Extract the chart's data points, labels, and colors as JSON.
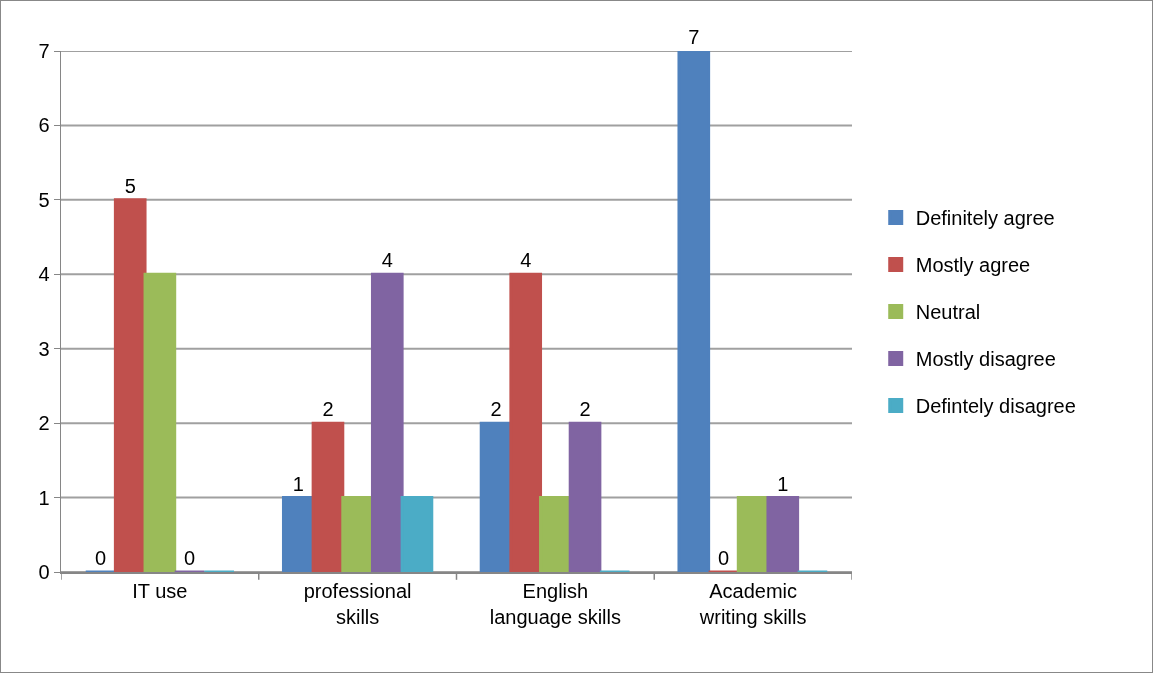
{
  "chart_data": {
    "type": "bar",
    "categories": [
      "IT use",
      "professional skills",
      "English language skills",
      "Academic writing skills"
    ],
    "series": [
      {
        "name": "Definitely agree",
        "color": "#4f81bd",
        "values": [
          0,
          1,
          2,
          7
        ],
        "value_labels": [
          "0",
          "1",
          "2",
          "7"
        ]
      },
      {
        "name": "Mostly agree",
        "color": "#c0504d",
        "values": [
          5,
          2,
          4,
          0
        ],
        "value_labels": [
          "5",
          "2",
          "4",
          "0"
        ]
      },
      {
        "name": "Neutral",
        "color": "#9bbb59",
        "values": [
          4,
          1,
          1,
          1
        ]
      },
      {
        "name": "Mostly disagree",
        "color": "#8064a2",
        "values": [
          0,
          4,
          2,
          1
        ],
        "value_labels": [
          "0",
          "4",
          "2",
          "1"
        ]
      },
      {
        "name": "Defintely disagree",
        "color": "#4bacc6",
        "values": [
          0,
          1,
          0,
          0
        ]
      }
    ],
    "ylim": [
      0,
      7
    ],
    "yticks": [
      0,
      1,
      2,
      3,
      4,
      5,
      6,
      7
    ],
    "grid": "y",
    "legend": "right"
  }
}
